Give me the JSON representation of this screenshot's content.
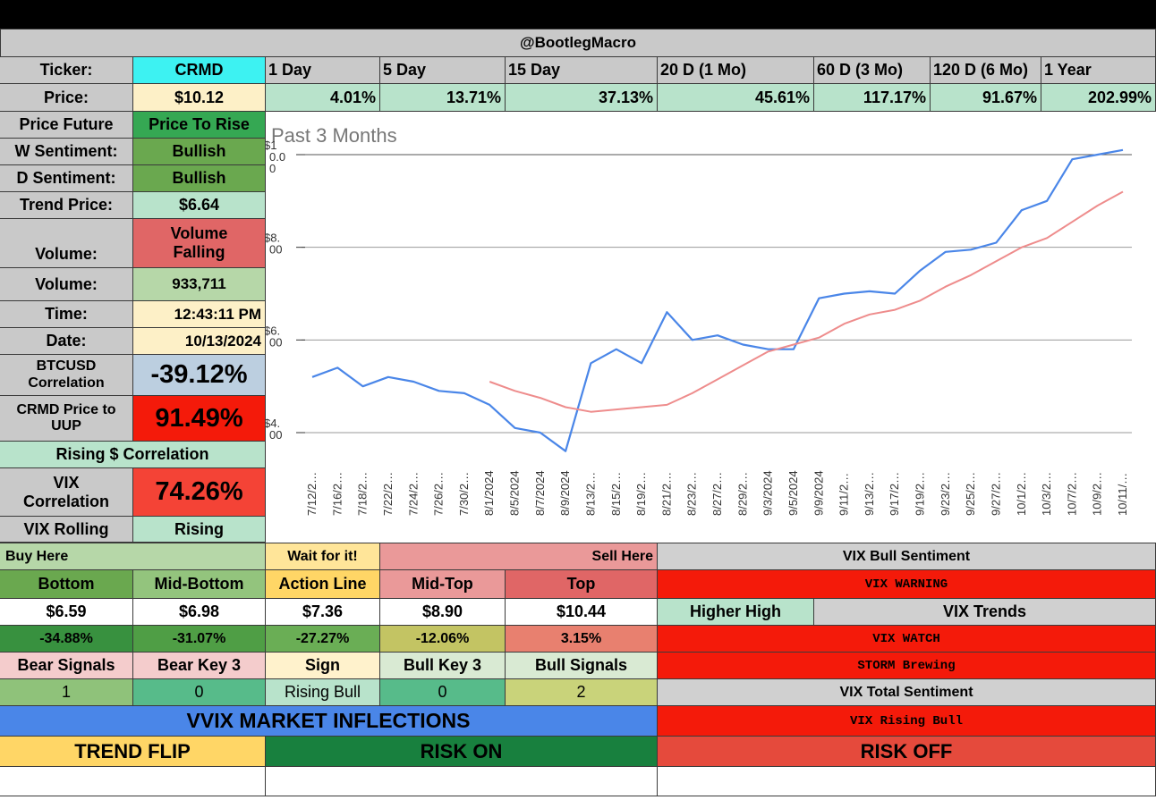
{
  "header": {
    "handle": "@BootlegMacro"
  },
  "left": {
    "ticker_label": "Ticker:",
    "ticker": "CRMD",
    "price_label": "Price:",
    "price": "$10.12",
    "future_label": "Price Future",
    "future": "Price To Rise",
    "wsent_label": "W Sentiment:",
    "wsent": "Bullish",
    "dsent_label": "D Sentiment:",
    "dsent": "Bullish",
    "trend_label": "Trend Price:",
    "trend": "$6.64",
    "vol_state_label": "Volume:",
    "vol_state": "Volume Falling",
    "volume_label": "Volume:",
    "volume": "933,711",
    "time_label": "Time:",
    "time": "12:43:11 PM",
    "date_label": "Date:",
    "date": "10/13/2024",
    "btc_label": "BTCUSD Correlation",
    "btc": "-39.12%",
    "uup_label": "CRMD Price to UUP",
    "uup": "91.49%",
    "rising_corr": "Rising $ Correlation",
    "vix_corr_label": "VIX Correlation",
    "vix_corr": "74.26%",
    "vix_roll_label": "VIX Rolling",
    "vix_roll": "Rising"
  },
  "periods": {
    "headers": [
      "1 Day",
      "5 Day",
      "15 Day",
      "20 D (1 Mo)",
      "60 D (3 Mo)",
      "120 D (6 Mo)",
      "1 Year"
    ],
    "values": [
      "4.01%",
      "13.71%",
      "37.13%",
      "45.61%",
      "117.17%",
      "91.67%",
      "202.99%"
    ]
  },
  "zones": {
    "buy_here": "Buy Here",
    "wait": "Wait for it!",
    "sell_here": "Sell Here",
    "headers": [
      "Bottom",
      "Mid-Bottom",
      "Action Line",
      "Mid-Top",
      "Top"
    ],
    "prices": [
      "$6.59",
      "$6.98",
      "$7.36",
      "$8.90",
      "$10.44"
    ],
    "pcts": [
      "-34.88%",
      "-31.07%",
      "-27.27%",
      "-12.06%",
      "3.15%"
    ]
  },
  "signals": {
    "headers": [
      "Bear Signals",
      "Bear Key 3",
      "Sign",
      "Bull Key 3",
      "Bull Signals"
    ],
    "values": [
      "1",
      "0",
      "Rising Bull",
      "0",
      "2"
    ]
  },
  "vix": {
    "bull_sentiment": "VIX Bull Sentiment",
    "warning": "VIX WARNING",
    "higher_high": "Higher High",
    "trends": "VIX Trends",
    "watch": "VIX WATCH",
    "storm": "STORM Brewing",
    "total": "VIX Total Sentiment",
    "rising_bull": "VIX Rising Bull"
  },
  "vvix": {
    "title": "VVIX MARKET INFLECTIONS",
    "trend_flip": "TREND FLIP",
    "risk_on": "RISK ON",
    "risk_off": "RISK OFF"
  },
  "chart_data": {
    "type": "line",
    "title": "Past 3 Months",
    "y_tick_labels": [
      "$1 0.0 0",
      "$8. 00",
      "$6. 00",
      "$4. 00"
    ],
    "y_ticks": [
      10,
      8,
      6,
      4
    ],
    "ylim": [
      3.5,
      10.3
    ],
    "x": [
      "7/12/2…",
      "7/16/2…",
      "7/18/2…",
      "7/22/2…",
      "7/24/2…",
      "7/26/2…",
      "7/30/2…",
      "8/1/2024",
      "8/5/2024",
      "8/7/2024",
      "8/9/2024",
      "8/13/2…",
      "8/15/2…",
      "8/19/2…",
      "8/21/2…",
      "8/23/2…",
      "8/27/2…",
      "8/29/2…",
      "9/3/2024",
      "9/5/2024",
      "9/9/2024",
      "9/11/2…",
      "9/13/2…",
      "9/17/2…",
      "9/19/2…",
      "9/23/2…",
      "9/25/2…",
      "9/27/2…",
      "10/1/2…",
      "10/3/2…",
      "10/7/2…",
      "10/9/2…",
      "10/11/…"
    ],
    "series": [
      {
        "color": "#4a86e8",
        "values": [
          5.2,
          5.4,
          5.0,
          5.2,
          5.1,
          4.9,
          4.85,
          4.6,
          4.1,
          4.0,
          3.6,
          5.5,
          5.8,
          5.5,
          6.6,
          6.0,
          6.1,
          5.9,
          5.8,
          5.8,
          6.9,
          7.0,
          7.05,
          7.0,
          7.5,
          7.9,
          7.95,
          8.1,
          8.8,
          9.0,
          9.9,
          10.0,
          10.1
        ]
      },
      {
        "color": "#ee8c8c",
        "values": [
          null,
          null,
          null,
          null,
          null,
          null,
          null,
          5.1,
          4.9,
          4.75,
          4.55,
          4.45,
          4.5,
          4.55,
          4.6,
          4.85,
          5.15,
          5.45,
          5.75,
          5.9,
          6.05,
          6.35,
          6.55,
          6.65,
          6.85,
          7.15,
          7.4,
          7.7,
          8.0,
          8.2,
          8.55,
          8.9,
          9.2
        ]
      }
    ]
  },
  "colors": {
    "header_gray": "#c9c9c9",
    "ticker_cyan": "#3df2f2",
    "pale_yellow": "#fdf0c7",
    "light_green": "#b8e3cb",
    "green": "#6aa84f",
    "green_text_cell": "#35a853",
    "red": "#e06666",
    "bright_red": "#f44336",
    "blue": "#4a86e8",
    "gold": "#ffd666",
    "dark_green": "#18803e"
  }
}
